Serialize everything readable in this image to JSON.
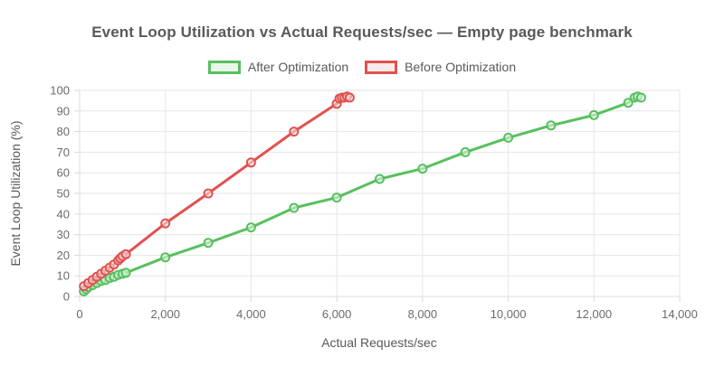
{
  "title": "Event Loop Utilization vs Actual Requests/sec — Empty page benchmark",
  "legend": {
    "items": [
      {
        "label": "After Optimization",
        "color": "#57c05f",
        "fill": "#eaf7eb"
      },
      {
        "label": "Before Optimization",
        "color": "#e05250",
        "fill": "#fbeaea"
      }
    ]
  },
  "colors": {
    "grid": "#e6e6e6",
    "axis_line": "#dcdcdc",
    "tick_mark": "#d9d9d9",
    "title_text": "#58595b",
    "tick_text": "#6b6b6b",
    "axis_title_text": "#595959",
    "after_series": "#57c05f",
    "before_series": "#e05250"
  },
  "chart_data": {
    "type": "line",
    "title": "Event Loop Utilization vs Actual Requests/sec — Empty page benchmark",
    "xlabel": "Actual Requests/sec",
    "ylabel": "Event Loop Utilization (%)",
    "xlim": [
      0,
      14000
    ],
    "ylim": [
      0,
      100
    ],
    "grid": true,
    "legend_position": "top",
    "x_ticks": [
      {
        "value": 0,
        "label": "0"
      },
      {
        "value": 2000,
        "label": "2,000"
      },
      {
        "value": 4000,
        "label": "4,000"
      },
      {
        "value": 6000,
        "label": "6,000"
      },
      {
        "value": 8000,
        "label": "8,000"
      },
      {
        "value": 10000,
        "label": "10,000"
      },
      {
        "value": 12000,
        "label": "12,000"
      },
      {
        "value": 14000,
        "label": "14,000"
      }
    ],
    "y_ticks": [
      {
        "value": 0,
        "label": "0"
      },
      {
        "value": 10,
        "label": "10"
      },
      {
        "value": 20,
        "label": "20"
      },
      {
        "value": 30,
        "label": "30"
      },
      {
        "value": 40,
        "label": "40"
      },
      {
        "value": 50,
        "label": "50"
      },
      {
        "value": 60,
        "label": "60"
      },
      {
        "value": 70,
        "label": "70"
      },
      {
        "value": 80,
        "label": "80"
      },
      {
        "value": 90,
        "label": "90"
      },
      {
        "value": 100,
        "label": "100"
      }
    ],
    "series": [
      {
        "name": "After Optimization",
        "color": "#57c05f",
        "point_fill": "#eaf7eb",
        "points": [
          [
            100,
            2.5
          ],
          [
            150,
            3.5
          ],
          [
            200,
            4.5
          ],
          [
            300,
            5.5
          ],
          [
            400,
            6.5
          ],
          [
            500,
            7.5
          ],
          [
            600,
            8
          ],
          [
            700,
            9
          ],
          [
            800,
            9.5
          ],
          [
            900,
            10.5
          ],
          [
            1000,
            11
          ],
          [
            1080,
            11.5
          ],
          [
            2000,
            19
          ],
          [
            3000,
            26
          ],
          [
            4000,
            33.5
          ],
          [
            5000,
            43
          ],
          [
            6000,
            48
          ],
          [
            7000,
            57
          ],
          [
            8000,
            62
          ],
          [
            9000,
            70
          ],
          [
            10000,
            77
          ],
          [
            11000,
            83
          ],
          [
            12000,
            88
          ],
          [
            12800,
            94
          ],
          [
            12950,
            96.5
          ],
          [
            13020,
            97
          ],
          [
            13100,
            96.5
          ]
        ]
      },
      {
        "name": "Before Optimization",
        "color": "#e05250",
        "point_fill": "#fbeaea",
        "points": [
          [
            100,
            5
          ],
          [
            200,
            6.5
          ],
          [
            300,
            8
          ],
          [
            400,
            9.5
          ],
          [
            500,
            11
          ],
          [
            600,
            12.5
          ],
          [
            700,
            14
          ],
          [
            800,
            15.5
          ],
          [
            900,
            17.5
          ],
          [
            950,
            18.5
          ],
          [
            1000,
            19.5
          ],
          [
            1080,
            20.5
          ],
          [
            2000,
            35.5
          ],
          [
            3000,
            50
          ],
          [
            4000,
            65
          ],
          [
            5000,
            80
          ],
          [
            6000,
            93.5
          ],
          [
            6060,
            96
          ],
          [
            6120,
            96.5
          ],
          [
            6180,
            96.5
          ],
          [
            6240,
            97
          ],
          [
            6300,
            96.5
          ]
        ]
      }
    ]
  }
}
